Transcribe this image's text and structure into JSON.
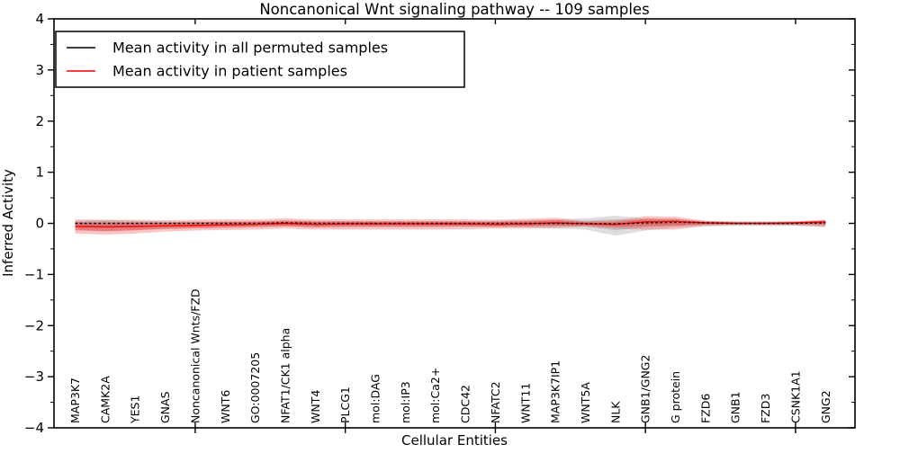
{
  "title": "Noncanonical Wnt signaling pathway -- 109 samples",
  "xlabel": "Cellular Entities",
  "ylabel": "Inferred Activity",
  "legend": {
    "position": "upper left",
    "entries": [
      {
        "label": "Mean activity in all permuted samples",
        "color": "#000000"
      },
      {
        "label": "Mean activity in patient samples",
        "color": "#ff0000"
      }
    ]
  },
  "colors": {
    "background": "#ffffff",
    "axes": "#000000",
    "permuted_line": "#000000",
    "patient_line": "#ff0000",
    "permuted_band": "#888888",
    "patient_band": "#ee3333"
  },
  "chart_data": {
    "type": "line",
    "title": "Noncanonical Wnt signaling pathway -- 109 samples",
    "xlabel": "Cellular Entities",
    "ylabel": "Inferred Activity",
    "grid": false,
    "legend_position": "upper left",
    "ylim": [
      -4,
      4
    ],
    "yticks": [
      -4,
      -3,
      -2,
      -1,
      0,
      1,
      2,
      3,
      4
    ],
    "ytick_minor_step": 0.5,
    "xticks_at_positions": [
      5,
      10,
      15,
      20,
      25
    ],
    "categories": [
      "MAP3K7",
      "CAMK2A",
      "YES1",
      "GNAS",
      "Noncanonical Wnts/FZD",
      "WNT6",
      "GO:0007205",
      "NFAT1/CK1 alpha",
      "WNT4",
      "PLCG1",
      "mol:DAG",
      "mol:IP3",
      "mol:Ca2+",
      "CDC42",
      "NFATC2",
      "WNT11",
      "MAP3K7IP1",
      "WNT5A",
      "NLK",
      "GNB1/GNG2",
      "G protein",
      "FZD6",
      "GNB1",
      "FZD3",
      "CSNK1A1",
      "GNG2"
    ],
    "series": [
      {
        "name": "Mean activity in all permuted samples",
        "color": "#000000",
        "line_style": "dashed",
        "values": [
          0,
          0,
          0,
          0,
          0,
          0,
          0,
          0.01,
          0,
          0,
          0,
          0,
          0,
          0,
          0,
          0,
          0,
          0,
          -0.01,
          0.01,
          0.02,
          0.01,
          0,
          0,
          0,
          0.01
        ],
        "band_top": [
          0.05,
          0.07,
          0.05,
          0.04,
          0.04,
          0.04,
          0.04,
          0.05,
          0.05,
          0.04,
          0.04,
          0.04,
          0.04,
          0.04,
          0.05,
          0.06,
          0.08,
          0.1,
          0.15,
          0.1,
          0.06,
          0.05,
          0.04,
          0.04,
          0.04,
          0.06
        ],
        "band_bottom": [
          -0.12,
          -0.16,
          -0.13,
          -0.1,
          -0.08,
          -0.07,
          -0.06,
          -0.06,
          -0.08,
          -0.06,
          -0.06,
          -0.06,
          -0.06,
          -0.06,
          -0.07,
          -0.08,
          -0.1,
          -0.12,
          -0.24,
          -0.14,
          -0.08,
          -0.06,
          -0.05,
          -0.05,
          -0.05,
          -0.07
        ],
        "band_color": "#888888"
      },
      {
        "name": "Mean activity in patient samples",
        "color": "#ff0000",
        "line_style": "solid",
        "values": [
          -0.06,
          -0.07,
          -0.06,
          -0.05,
          -0.04,
          -0.03,
          -0.02,
          0,
          -0.02,
          -0.01,
          -0.01,
          -0.01,
          -0.01,
          -0.01,
          -0.02,
          -0.01,
          0.01,
          -0.01,
          -0.02,
          0.03,
          0.04,
          0.01,
          0,
          0,
          0.01,
          0.03
        ],
        "band_top": [
          0.08,
          0.07,
          0.07,
          0.06,
          0.07,
          0.08,
          0.08,
          0.1,
          0.08,
          0.08,
          0.08,
          0.08,
          0.08,
          0.08,
          0.07,
          0.09,
          0.11,
          0.04,
          0.06,
          0.14,
          0.13,
          0.05,
          0.03,
          0.03,
          0.04,
          0.07
        ],
        "band_bottom": [
          -0.2,
          -0.22,
          -0.2,
          -0.16,
          -0.14,
          -0.13,
          -0.12,
          -0.1,
          -0.12,
          -0.12,
          -0.12,
          -0.12,
          -0.12,
          -0.11,
          -0.1,
          -0.1,
          -0.09,
          -0.06,
          -0.1,
          -0.12,
          -0.12,
          -0.05,
          -0.03,
          -0.03,
          -0.04,
          -0.07
        ],
        "band_color": "#ee3333"
      }
    ]
  }
}
